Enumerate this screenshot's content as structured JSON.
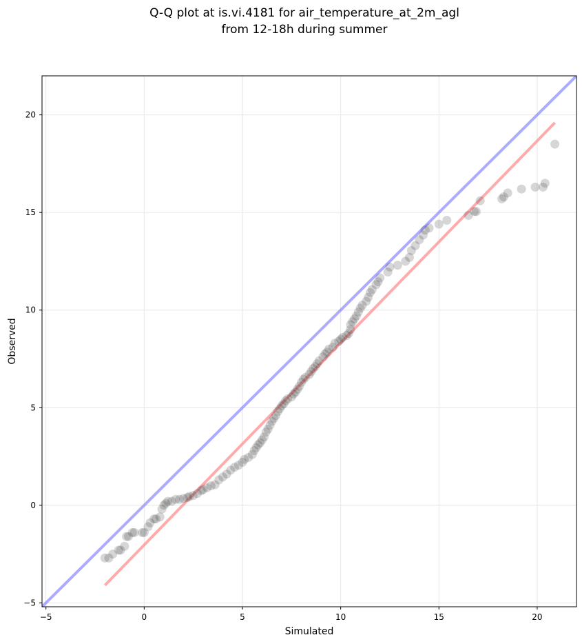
{
  "chart_data": {
    "type": "scatter",
    "title_lines": [
      "Q-Q plot at is.vi.4181 for air_temperature_at_2m_agl",
      "from 12-18h during summer"
    ],
    "xlabel": "Simulated",
    "ylabel": "Observed",
    "xlim": [
      -5.2,
      22.0
    ],
    "ylim": [
      -5.2,
      22.0
    ],
    "xticks": [
      -5,
      0,
      5,
      10,
      15,
      20
    ],
    "yticks": [
      -5,
      0,
      5,
      10,
      15,
      20
    ],
    "grid": true,
    "colors": {
      "points": "#333333",
      "identity_line": "#7777ff",
      "fit_line": "#ff7777",
      "grid": "#e6e6e6"
    },
    "identity_line": {
      "x": [
        -5.2,
        22.0
      ],
      "y": [
        -5.2,
        22.0
      ]
    },
    "fit_line": {
      "x": [
        -2.0,
        20.9
      ],
      "y": [
        -4.1,
        19.6
      ]
    },
    "series": [
      {
        "points": [
          [
            -2.0,
            -2.7
          ],
          [
            -1.8,
            -2.7
          ],
          [
            -1.6,
            -2.5
          ],
          [
            -1.3,
            -2.3
          ],
          [
            -1.2,
            -2.3
          ],
          [
            -1.0,
            -2.1
          ],
          [
            -0.9,
            -1.6
          ],
          [
            -0.8,
            -1.6
          ],
          [
            -0.6,
            -1.4
          ],
          [
            -0.5,
            -1.4
          ],
          [
            -0.1,
            -1.4
          ],
          [
            0.0,
            -1.4
          ],
          [
            0.2,
            -1.1
          ],
          [
            0.3,
            -0.9
          ],
          [
            0.5,
            -0.7
          ],
          [
            0.6,
            -0.7
          ],
          [
            0.8,
            -0.6
          ],
          [
            0.9,
            -0.2
          ],
          [
            1.0,
            0.0
          ],
          [
            1.1,
            0.1
          ],
          [
            1.2,
            0.2
          ],
          [
            1.4,
            0.2
          ],
          [
            1.6,
            0.3
          ],
          [
            1.8,
            0.3
          ],
          [
            2.0,
            0.35
          ],
          [
            2.2,
            0.4
          ],
          [
            2.3,
            0.45
          ],
          [
            2.5,
            0.5
          ],
          [
            2.7,
            0.6
          ],
          [
            2.9,
            0.75
          ],
          [
            3.0,
            0.8
          ],
          [
            3.2,
            0.9
          ],
          [
            3.4,
            1.0
          ],
          [
            3.6,
            1.05
          ],
          [
            3.8,
            1.3
          ],
          [
            4.0,
            1.45
          ],
          [
            4.2,
            1.6
          ],
          [
            4.4,
            1.8
          ],
          [
            4.6,
            1.95
          ],
          [
            4.8,
            2.05
          ],
          [
            5.0,
            2.2
          ],
          [
            5.1,
            2.35
          ],
          [
            5.3,
            2.45
          ],
          [
            5.5,
            2.6
          ],
          [
            5.6,
            2.8
          ],
          [
            5.7,
            2.95
          ],
          [
            5.8,
            3.1
          ],
          [
            5.9,
            3.2
          ],
          [
            6.0,
            3.35
          ],
          [
            6.1,
            3.5
          ],
          [
            6.2,
            3.75
          ],
          [
            6.3,
            3.9
          ],
          [
            6.4,
            4.1
          ],
          [
            6.5,
            4.3
          ],
          [
            6.6,
            4.45
          ],
          [
            6.7,
            4.6
          ],
          [
            6.8,
            4.8
          ],
          [
            6.9,
            4.95
          ],
          [
            7.0,
            5.1
          ],
          [
            7.1,
            5.2
          ],
          [
            7.2,
            5.35
          ],
          [
            7.3,
            5.45
          ],
          [
            7.5,
            5.55
          ],
          [
            7.6,
            5.7
          ],
          [
            7.7,
            5.8
          ],
          [
            7.8,
            5.95
          ],
          [
            7.9,
            6.1
          ],
          [
            8.0,
            6.3
          ],
          [
            8.1,
            6.45
          ],
          [
            8.2,
            6.55
          ],
          [
            8.4,
            6.7
          ],
          [
            8.5,
            6.85
          ],
          [
            8.6,
            7.0
          ],
          [
            8.7,
            7.1
          ],
          [
            8.8,
            7.25
          ],
          [
            8.9,
            7.4
          ],
          [
            9.1,
            7.6
          ],
          [
            9.2,
            7.75
          ],
          [
            9.3,
            7.85
          ],
          [
            9.4,
            8.0
          ],
          [
            9.6,
            8.1
          ],
          [
            9.7,
            8.3
          ],
          [
            9.9,
            8.4
          ],
          [
            10.0,
            8.5
          ],
          [
            10.1,
            8.6
          ],
          [
            10.3,
            8.7
          ],
          [
            10.4,
            8.8
          ],
          [
            10.5,
            9.0
          ],
          [
            10.5,
            9.25
          ],
          [
            10.6,
            9.4
          ],
          [
            10.7,
            9.55
          ],
          [
            10.8,
            9.7
          ],
          [
            10.9,
            9.9
          ],
          [
            11.0,
            10.1
          ],
          [
            11.1,
            10.25
          ],
          [
            11.3,
            10.45
          ],
          [
            11.4,
            10.65
          ],
          [
            11.5,
            10.9
          ],
          [
            11.6,
            11.05
          ],
          [
            11.8,
            11.3
          ],
          [
            11.9,
            11.45
          ],
          [
            12.0,
            11.65
          ],
          [
            12.4,
            11.95
          ],
          [
            12.5,
            12.2
          ],
          [
            12.9,
            12.3
          ],
          [
            13.3,
            12.5
          ],
          [
            13.5,
            12.7
          ],
          [
            13.6,
            13.05
          ],
          [
            13.8,
            13.3
          ],
          [
            14.0,
            13.6
          ],
          [
            14.2,
            13.85
          ],
          [
            14.3,
            14.1
          ],
          [
            14.5,
            14.2
          ],
          [
            15.0,
            14.4
          ],
          [
            15.4,
            14.6
          ],
          [
            16.5,
            14.85
          ],
          [
            16.8,
            15.05
          ],
          [
            16.9,
            15.05
          ],
          [
            17.1,
            15.6
          ],
          [
            18.2,
            15.7
          ],
          [
            18.3,
            15.8
          ],
          [
            18.5,
            16.0
          ],
          [
            19.2,
            16.2
          ],
          [
            19.9,
            16.3
          ],
          [
            20.3,
            16.3
          ],
          [
            20.4,
            16.5
          ],
          [
            20.9,
            18.5
          ]
        ]
      }
    ]
  }
}
